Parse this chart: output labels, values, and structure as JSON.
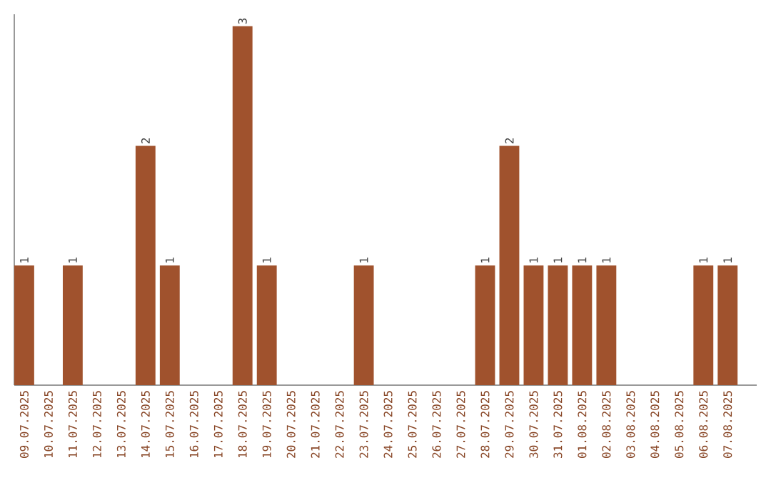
{
  "chart_data": {
    "type": "bar",
    "categories": [
      "09.07.2025",
      "10.07.2025",
      "11.07.2025",
      "12.07.2025",
      "13.07.2025",
      "14.07.2025",
      "15.07.2025",
      "16.07.2025",
      "17.07.2025",
      "18.07.2025",
      "19.07.2025",
      "20.07.2025",
      "21.07.2025",
      "22.07.2025",
      "23.07.2025",
      "24.07.2025",
      "25.07.2025",
      "26.07.2025",
      "27.07.2025",
      "28.07.2025",
      "29.07.2025",
      "30.07.2025",
      "31.07.2025",
      "01.08.2025",
      "02.08.2025",
      "03.08.2025",
      "04.08.2025",
      "05.08.2025",
      "06.08.2025",
      "07.08.2025"
    ],
    "values": [
      1,
      0,
      1,
      0,
      0,
      2,
      1,
      0,
      0,
      3,
      1,
      0,
      0,
      0,
      1,
      0,
      0,
      0,
      0,
      1,
      2,
      1,
      1,
      1,
      1,
      0,
      0,
      0,
      1,
      1
    ],
    "value_labels": [
      "1",
      null,
      "1",
      null,
      null,
      "2",
      "1",
      null,
      null,
      "3",
      "1",
      null,
      null,
      null,
      "1",
      null,
      null,
      null,
      null,
      "1",
      "2",
      "1",
      "1",
      "1",
      "1",
      null,
      null,
      null,
      "1",
      "1"
    ],
    "color": "#a0522d",
    "ylim": [
      0,
      3.1
    ],
    "tick_labels": "x",
    "grid": false
  }
}
